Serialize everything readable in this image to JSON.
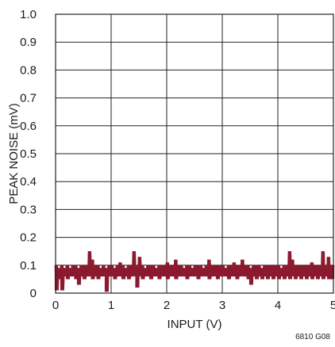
{
  "chart_data": {
    "type": "line",
    "title": "",
    "xlabel": "INPUT (V)",
    "ylabel": "PEAK NOISE (mV)",
    "xlim": [
      0,
      5
    ],
    "ylim": [
      0,
      1.0
    ],
    "x_ticks": [
      "0",
      "1",
      "2",
      "3",
      "4",
      "5"
    ],
    "y_ticks": [
      "0",
      "0.1",
      "0.2",
      "0.3",
      "0.4",
      "0.5",
      "0.6",
      "0.7",
      "0.8",
      "0.9",
      "1.0"
    ],
    "grid": true,
    "series": [
      {
        "color": "#8b1a2e",
        "x": [
          0.0,
          0.05,
          0.1,
          0.15,
          0.2,
          0.25,
          0.3,
          0.35,
          0.4,
          0.45,
          0.5,
          0.55,
          0.6,
          0.65,
          0.7,
          0.75,
          0.8,
          0.85,
          0.9,
          0.95,
          1.0,
          1.05,
          1.1,
          1.15,
          1.2,
          1.25,
          1.3,
          1.35,
          1.4,
          1.45,
          1.5,
          1.55,
          1.6,
          1.65,
          1.7,
          1.75,
          1.8,
          1.85,
          1.9,
          1.95,
          2.0,
          2.05,
          2.1,
          2.15,
          2.2,
          2.25,
          2.3,
          2.35,
          2.4,
          2.45,
          2.5,
          2.55,
          2.6,
          2.65,
          2.7,
          2.75,
          2.8,
          2.85,
          2.9,
          2.95,
          3.0,
          3.05,
          3.1,
          3.15,
          3.2,
          3.25,
          3.3,
          3.35,
          3.4,
          3.45,
          3.5,
          3.55,
          3.6,
          3.65,
          3.7,
          3.75,
          3.8,
          3.85,
          3.9,
          3.95,
          4.0,
          4.05,
          4.1,
          4.15,
          4.2,
          4.25,
          4.3,
          4.35,
          4.4,
          4.45,
          4.5,
          4.55,
          4.6,
          4.65,
          4.7,
          4.75,
          4.8,
          4.85,
          4.9,
          4.95,
          5.0
        ],
        "y_high": [
          0.1,
          0.09,
          0.1,
          0.09,
          0.1,
          0.09,
          0.1,
          0.1,
          0.09,
          0.1,
          0.1,
          0.1,
          0.15,
          0.12,
          0.1,
          0.1,
          0.09,
          0.1,
          0.09,
          0.1,
          0.1,
          0.09,
          0.1,
          0.11,
          0.1,
          0.09,
          0.1,
          0.1,
          0.15,
          0.1,
          0.13,
          0.1,
          0.09,
          0.1,
          0.1,
          0.1,
          0.09,
          0.1,
          0.1,
          0.1,
          0.11,
          0.1,
          0.1,
          0.12,
          0.1,
          0.1,
          0.09,
          0.1,
          0.1,
          0.09,
          0.1,
          0.1,
          0.1,
          0.09,
          0.1,
          0.12,
          0.1,
          0.1,
          0.1,
          0.1,
          0.1,
          0.09,
          0.1,
          0.1,
          0.11,
          0.1,
          0.1,
          0.12,
          0.1,
          0.1,
          0.09,
          0.1,
          0.1,
          0.1,
          0.09,
          0.1,
          0.1,
          0.1,
          0.1,
          0.1,
          0.1,
          0.09,
          0.1,
          0.1,
          0.15,
          0.12,
          0.1,
          0.1,
          0.1,
          0.1,
          0.1,
          0.1,
          0.11,
          0.1,
          0.1,
          0.1,
          0.15,
          0.1,
          0.13,
          0.1,
          0.1
        ],
        "y_low": [
          0.01,
          0.05,
          0.01,
          0.06,
          0.05,
          0.06,
          0.06,
          0.05,
          0.03,
          0.06,
          0.05,
          0.06,
          0.06,
          0.05,
          0.06,
          0.05,
          0.06,
          0.06,
          0.005,
          0.06,
          0.06,
          0.05,
          0.06,
          0.06,
          0.05,
          0.06,
          0.05,
          0.06,
          0.06,
          0.02,
          0.06,
          0.05,
          0.06,
          0.06,
          0.05,
          0.06,
          0.06,
          0.05,
          0.06,
          0.06,
          0.05,
          0.06,
          0.06,
          0.05,
          0.06,
          0.06,
          0.06,
          0.05,
          0.06,
          0.06,
          0.06,
          0.05,
          0.06,
          0.06,
          0.06,
          0.05,
          0.06,
          0.06,
          0.05,
          0.06,
          0.06,
          0.06,
          0.05,
          0.06,
          0.06,
          0.05,
          0.06,
          0.06,
          0.06,
          0.05,
          0.03,
          0.06,
          0.05,
          0.06,
          0.05,
          0.06,
          0.05,
          0.06,
          0.05,
          0.06,
          0.05,
          0.06,
          0.05,
          0.06,
          0.05,
          0.06,
          0.05,
          0.06,
          0.05,
          0.06,
          0.05,
          0.06,
          0.05,
          0.06,
          0.05,
          0.06,
          0.05,
          0.06,
          0.05,
          0.05,
          0.05
        ]
      }
    ]
  },
  "figure_code": "6810 G08"
}
